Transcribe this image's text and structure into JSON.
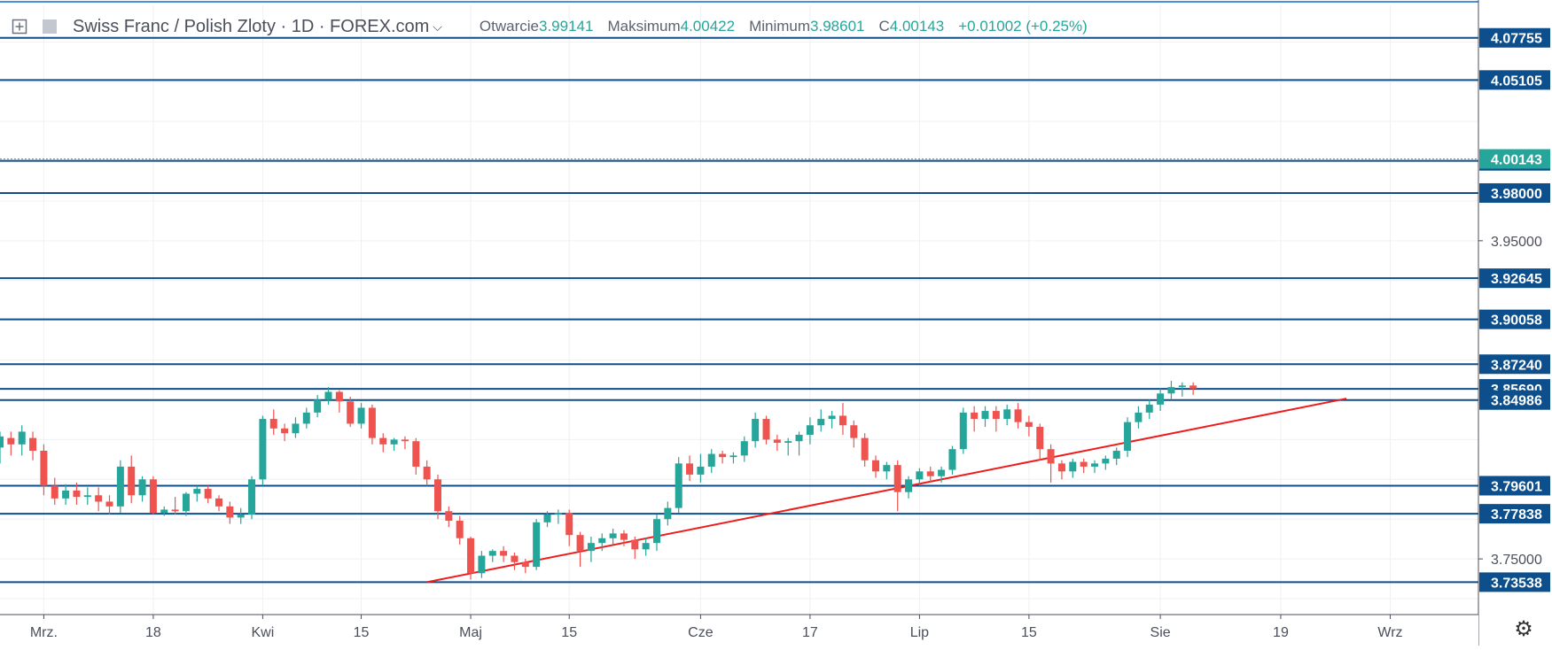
{
  "legend": {
    "symbol": "Swiss Franc / Polish Zloty · 1D · FOREX.com",
    "open_label": "Otwarcie",
    "open": "3.99141",
    "high_label": "Maksimum",
    "high": "4.00422",
    "low_label": "Minimum",
    "low": "3.98601",
    "close_label": "C",
    "close": "4.00143",
    "change": "+0.01002 (+0.25%)"
  },
  "colors": {
    "up": "#26a69a",
    "down": "#ef5350",
    "level": "#0d4f8c",
    "trend": "#ef1c1c",
    "grid": "#eef0f3",
    "axis_text": "#4b4f5a"
  },
  "chart_data": {
    "type": "candlestick",
    "title": "Swiss Franc / Polish Zloty, 1D, FOREX.com",
    "ylim": [
      3.715,
      4.098
    ],
    "x_ticks": [
      {
        "label": "Mrz.",
        "bar": 4
      },
      {
        "label": "18",
        "bar": 14
      },
      {
        "label": "Kwi",
        "bar": 24
      },
      {
        "label": "15",
        "bar": 33
      },
      {
        "label": "Maj",
        "bar": 43
      },
      {
        "label": "15",
        "bar": 52
      },
      {
        "label": "Cze",
        "bar": 64
      },
      {
        "label": "17",
        "bar": 74
      },
      {
        "label": "Lip",
        "bar": 84
      },
      {
        "label": "15",
        "bar": 94
      },
      {
        "label": "Sie",
        "bar": 106
      },
      {
        "label": "19",
        "bar": 117
      },
      {
        "label": "Wrz",
        "bar": 127
      }
    ],
    "y_ticks": [
      "3.75000",
      "3.95000"
    ],
    "levels": [
      "4.07755",
      "4.05105",
      "4.00022",
      "3.98000",
      "3.92645",
      "3.90058",
      "3.87240",
      "3.85690",
      "3.84986",
      "3.79601",
      "3.77838",
      "3.73538"
    ],
    "last_price": "4.00143",
    "trendline": [
      {
        "bar": 39,
        "price": 3.7354
      },
      {
        "bar": 123,
        "price": 3.8508
      }
    ],
    "candles": [
      [
        3.82,
        3.827,
        3.815,
        3.83,
        3.81
      ],
      [
        3.826,
        3.822,
        3.82,
        3.83,
        3.815
      ],
      [
        3.822,
        3.83,
        3.818,
        3.834,
        3.815
      ],
      [
        3.826,
        3.818,
        3.815,
        3.83,
        3.812
      ],
      [
        3.818,
        3.796,
        3.79,
        3.822,
        3.79
      ],
      [
        3.796,
        3.788,
        3.784,
        3.801,
        3.784
      ],
      [
        3.788,
        3.793,
        3.788,
        3.797,
        3.784
      ],
      [
        3.793,
        3.789,
        3.787,
        3.798,
        3.784
      ],
      [
        3.789,
        3.79,
        3.786,
        3.795,
        3.784
      ],
      [
        3.79,
        3.786,
        3.781,
        3.795,
        3.78
      ],
      [
        3.786,
        3.783,
        3.78,
        3.79,
        3.778
      ],
      [
        3.783,
        3.808,
        3.782,
        3.812,
        3.779
      ],
      [
        3.808,
        3.79,
        3.788,
        3.815,
        3.785
      ],
      [
        3.79,
        3.8,
        3.788,
        3.802,
        3.786
      ],
      [
        3.8,
        3.779,
        3.778,
        3.802,
        3.778
      ],
      [
        3.779,
        3.781,
        3.778,
        3.783,
        3.777
      ],
      [
        3.781,
        3.78,
        3.778,
        3.789,
        3.778
      ],
      [
        3.78,
        3.791,
        3.779,
        3.792,
        3.777
      ],
      [
        3.791,
        3.794,
        3.789,
        3.796,
        3.786
      ],
      [
        3.794,
        3.788,
        3.786,
        3.796,
        3.785
      ],
      [
        3.788,
        3.783,
        3.781,
        3.79,
        3.78
      ],
      [
        3.783,
        3.776,
        3.775,
        3.786,
        3.772
      ],
      [
        3.776,
        3.778,
        3.775,
        3.782,
        3.772
      ],
      [
        3.778,
        3.8,
        3.776,
        3.802,
        3.775
      ],
      [
        3.8,
        3.838,
        3.799,
        3.84,
        3.796
      ],
      [
        3.838,
        3.832,
        3.829,
        3.844,
        3.828
      ],
      [
        3.832,
        3.829,
        3.827,
        3.835,
        3.824
      ],
      [
        3.829,
        3.835,
        3.827,
        3.839,
        3.826
      ],
      [
        3.835,
        3.842,
        3.833,
        3.845,
        3.832
      ],
      [
        3.842,
        3.85,
        3.84,
        3.853,
        3.839
      ],
      [
        3.85,
        3.855,
        3.848,
        3.858,
        3.847
      ],
      [
        3.855,
        3.849,
        3.847,
        3.856,
        3.842
      ],
      [
        3.849,
        3.835,
        3.834,
        3.852,
        3.833
      ],
      [
        3.835,
        3.845,
        3.834,
        3.848,
        3.832
      ],
      [
        3.845,
        3.826,
        3.825,
        3.847,
        3.822
      ],
      [
        3.826,
        3.822,
        3.821,
        3.829,
        3.817
      ],
      [
        3.822,
        3.825,
        3.819,
        3.826,
        3.818
      ],
      [
        3.825,
        3.824,
        3.821,
        3.827,
        3.819
      ],
      [
        3.824,
        3.808,
        3.806,
        3.826,
        3.803
      ],
      [
        3.808,
        3.8,
        3.798,
        3.812,
        3.796
      ],
      [
        3.8,
        3.78,
        3.778,
        3.803,
        3.775
      ],
      [
        3.78,
        3.774,
        3.771,
        3.783,
        3.77
      ],
      [
        3.774,
        3.763,
        3.761,
        3.777,
        3.759
      ],
      [
        3.763,
        3.741,
        3.738,
        3.764,
        3.737
      ],
      [
        3.741,
        3.752,
        3.739,
        3.755,
        3.738
      ],
      [
        3.752,
        3.755,
        3.75,
        3.756,
        3.748
      ],
      [
        3.755,
        3.752,
        3.75,
        3.758,
        3.748
      ],
      [
        3.752,
        3.748,
        3.744,
        3.754,
        3.743
      ],
      [
        3.748,
        3.745,
        3.744,
        3.75,
        3.741
      ],
      [
        3.745,
        3.773,
        3.744,
        3.775,
        3.743
      ],
      [
        3.773,
        3.778,
        3.771,
        3.78,
        3.77
      ],
      [
        3.778,
        3.779,
        3.775,
        3.781,
        3.772
      ],
      [
        3.779,
        3.765,
        3.763,
        3.781,
        3.758
      ],
      [
        3.765,
        3.755,
        3.753,
        3.767,
        3.745
      ],
      [
        3.755,
        3.76,
        3.751,
        3.764,
        3.748
      ],
      [
        3.76,
        3.763,
        3.757,
        3.766,
        3.755
      ],
      [
        3.763,
        3.766,
        3.761,
        3.769,
        3.759
      ],
      [
        3.766,
        3.762,
        3.76,
        3.768,
        3.758
      ],
      [
        3.762,
        3.756,
        3.754,
        3.764,
        3.75
      ],
      [
        3.756,
        3.76,
        3.754,
        3.763,
        3.752
      ],
      [
        3.76,
        3.775,
        3.758,
        3.778,
        3.755
      ],
      [
        3.775,
        3.782,
        3.773,
        3.786,
        3.771
      ],
      [
        3.782,
        3.81,
        3.78,
        3.814,
        3.779
      ],
      [
        3.81,
        3.803,
        3.801,
        3.815,
        3.799
      ],
      [
        3.803,
        3.808,
        3.8,
        3.816,
        3.798
      ],
      [
        3.808,
        3.816,
        3.806,
        3.819,
        3.804
      ],
      [
        3.816,
        3.814,
        3.812,
        3.818,
        3.81
      ],
      [
        3.814,
        3.815,
        3.812,
        3.817,
        3.81
      ],
      [
        3.815,
        3.824,
        3.813,
        3.827,
        3.811
      ],
      [
        3.824,
        3.838,
        3.822,
        3.842,
        3.82
      ],
      [
        3.838,
        3.825,
        3.823,
        3.84,
        3.822
      ],
      [
        3.825,
        3.823,
        3.82,
        3.828,
        3.818
      ],
      [
        3.823,
        3.824,
        3.821,
        3.826,
        3.815
      ],
      [
        3.824,
        3.828,
        3.822,
        3.83,
        3.815
      ],
      [
        3.828,
        3.834,
        3.826,
        3.839,
        3.822
      ],
      [
        3.834,
        3.838,
        3.832,
        3.844,
        3.83
      ],
      [
        3.838,
        3.84,
        3.835,
        3.843,
        3.832
      ],
      [
        3.84,
        3.834,
        3.832,
        3.848,
        3.828
      ],
      [
        3.834,
        3.826,
        3.824,
        3.837,
        3.82
      ],
      [
        3.826,
        3.812,
        3.81,
        3.829,
        3.808
      ],
      [
        3.812,
        3.805,
        3.803,
        3.815,
        3.801
      ],
      [
        3.805,
        3.809,
        3.803,
        3.811,
        3.8
      ],
      [
        3.809,
        3.792,
        3.79,
        3.812,
        3.78
      ],
      [
        3.792,
        3.8,
        3.79,
        3.802,
        3.788
      ],
      [
        3.8,
        3.805,
        3.798,
        3.807,
        3.796
      ],
      [
        3.805,
        3.802,
        3.8,
        3.808,
        3.798
      ],
      [
        3.802,
        3.806,
        3.8,
        3.808,
        3.798
      ],
      [
        3.806,
        3.819,
        3.804,
        3.821,
        3.803
      ],
      [
        3.819,
        3.842,
        3.817,
        3.845,
        3.816
      ],
      [
        3.842,
        3.838,
        3.836,
        3.846,
        3.83
      ],
      [
        3.838,
        3.843,
        3.836,
        3.846,
        3.833
      ],
      [
        3.843,
        3.838,
        3.836,
        3.846,
        3.83
      ],
      [
        3.838,
        3.844,
        3.836,
        3.847,
        3.834
      ],
      [
        3.844,
        3.836,
        3.834,
        3.848,
        3.832
      ],
      [
        3.836,
        3.833,
        3.831,
        3.84,
        3.827
      ],
      [
        3.833,
        3.819,
        3.817,
        3.835,
        3.812
      ],
      [
        3.819,
        3.81,
        3.802,
        3.822,
        3.798
      ],
      [
        3.81,
        3.805,
        3.803,
        3.812,
        3.8
      ],
      [
        3.805,
        3.811,
        3.803,
        3.813,
        3.801
      ],
      [
        3.811,
        3.808,
        3.806,
        3.813,
        3.804
      ],
      [
        3.808,
        3.81,
        3.806,
        3.812,
        3.804
      ],
      [
        3.81,
        3.813,
        3.808,
        3.815,
        3.806
      ],
      [
        3.813,
        3.818,
        3.811,
        3.82,
        3.809
      ],
      [
        3.818,
        3.836,
        3.816,
        3.839,
        3.814
      ],
      [
        3.836,
        3.842,
        3.834,
        3.846,
        3.832
      ],
      [
        3.842,
        3.847,
        3.84,
        3.85,
        3.838
      ],
      [
        3.847,
        3.854,
        3.845,
        3.857,
        3.843
      ],
      [
        3.854,
        3.858,
        3.852,
        3.862,
        3.85
      ],
      [
        3.858,
        3.859,
        3.855,
        3.861,
        3.852
      ],
      [
        3.859,
        3.857,
        3.855,
        3.861,
        3.853
      ]
    ]
  }
}
